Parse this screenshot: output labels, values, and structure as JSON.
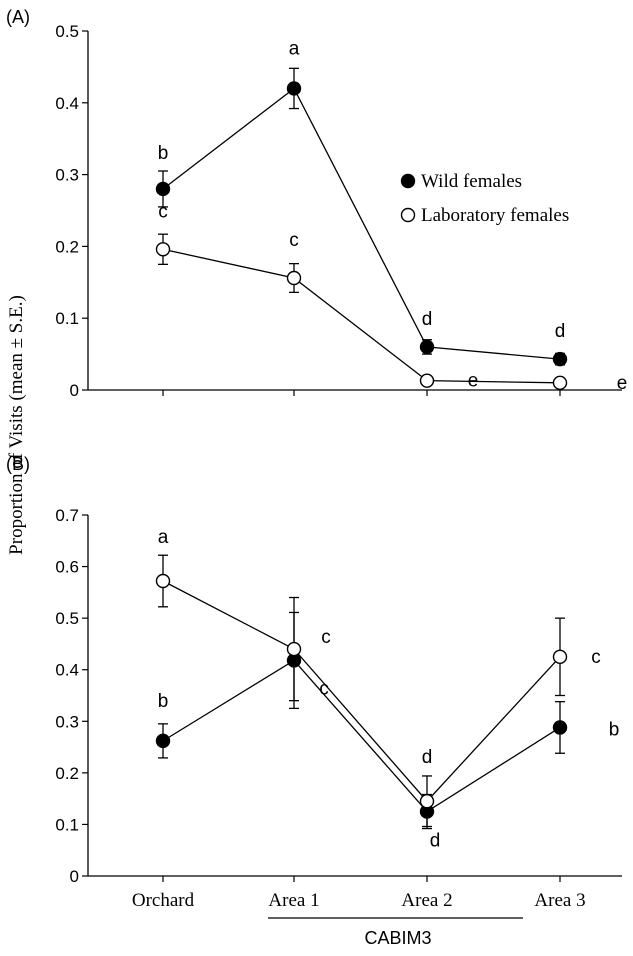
{
  "colors": {
    "ink": "#000000",
    "open_fill": "#ffffff",
    "filled": "#000000",
    "bracket": "#000000"
  },
  "common": {
    "ylabel": "Proportion of Visits (mean ± S.E.)",
    "categories": [
      "Orchard",
      "Area 1",
      "Area 2",
      "Area 3"
    ],
    "group_label": "CABIM3"
  },
  "chart_data": [
    {
      "type": "line",
      "panel_label": "(A)",
      "categories": [
        "Orchard",
        "Area 1",
        "Area 2",
        "Area 3"
      ],
      "ylim": [
        0,
        0.5
      ],
      "yticks": [
        "0",
        "0.1",
        "0.2",
        "0.3",
        "0.4",
        "0.5"
      ],
      "legend": {
        "placement": "right",
        "entries": [
          "Wild females",
          "Laboratory females"
        ]
      },
      "series": [
        {
          "name": "Wild females",
          "marker": "filled",
          "values": [
            0.28,
            0.42,
            0.06,
            0.043
          ],
          "err": [
            0.025,
            0.028,
            0.01,
            0.008
          ],
          "letters": [
            "b",
            "a",
            "d",
            "d"
          ]
        },
        {
          "name": "Laboratory females",
          "marker": "open",
          "values": [
            0.196,
            0.156,
            0.013,
            0.01
          ],
          "err": [
            0.021,
            0.02,
            0.003,
            0.003
          ],
          "letters": [
            "c",
            "c",
            "e",
            "e"
          ]
        }
      ]
    },
    {
      "type": "line",
      "panel_label": "(B)",
      "categories": [
        "Orchard",
        "Area 1",
        "Area 2",
        "Area 3"
      ],
      "ylim": [
        0,
        0.7
      ],
      "yticks": [
        "0",
        "0.1",
        "0.2",
        "0.3",
        "0.4",
        "0.5",
        "0.6",
        "0.7"
      ],
      "series": [
        {
          "marker": "filled",
          "values": [
            0.262,
            0.418,
            0.125,
            0.288
          ],
          "err": [
            0.033,
            0.093,
            0.033,
            0.05
          ],
          "letters": [
            "b",
            "c",
            "d",
            "b"
          ]
        },
        {
          "marker": "open",
          "values": [
            0.572,
            0.44,
            0.145,
            0.425
          ],
          "err": [
            0.05,
            0.1,
            0.049,
            0.075
          ],
          "letters": [
            "a",
            "c",
            "d",
            "c"
          ]
        }
      ]
    }
  ]
}
